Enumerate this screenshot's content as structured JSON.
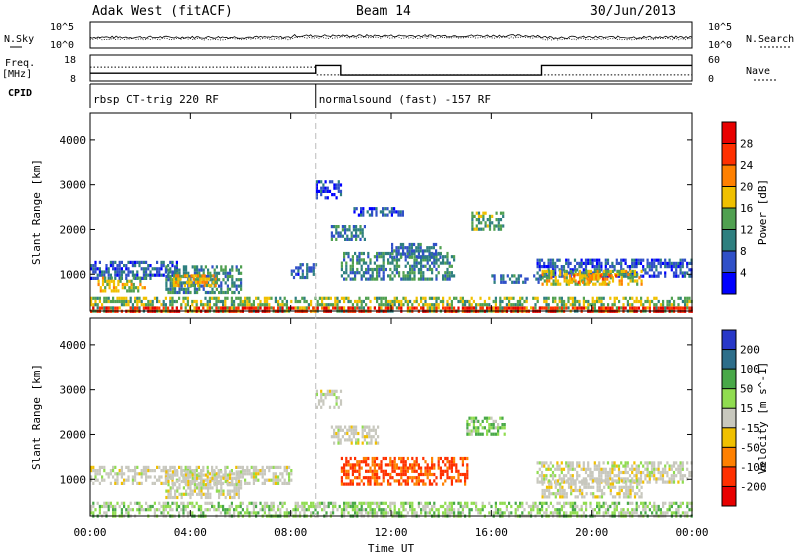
{
  "header": {
    "radar": "Adak West (fitACF)",
    "beam": "Beam 14",
    "date": "30/Jun/2013"
  },
  "noise_panel": {
    "left_label": "N.Sky",
    "right_label": "N.Search",
    "left_ticks": [
      "10^5",
      "10^0"
    ],
    "right_ticks": [
      "10^5",
      "10^0"
    ]
  },
  "freq_panel": {
    "left_label_1": "Freq.",
    "left_label_2": "[MHz]",
    "right_label": "Nave",
    "left_ticks": [
      "18",
      "8"
    ],
    "right_ticks": [
      "60",
      "0"
    ],
    "freq_steps": [
      {
        "t0": 0.0,
        "t1": 9.0,
        "mhz": 11.0
      },
      {
        "t0": 9.0,
        "t1": 10.0,
        "mhz": 14.0
      },
      {
        "t0": 10.0,
        "t1": 18.0,
        "mhz": 10.3
      },
      {
        "t0": 18.0,
        "t1": 24.0,
        "mhz": 14.0
      }
    ],
    "nave_steps": [
      {
        "t0": 0.0,
        "t1": 9.0,
        "nave": 32
      },
      {
        "t0": 9.0,
        "t1": 10.0,
        "nave": 14
      },
      {
        "t0": 10.0,
        "t1": 18.0,
        "nave": 14
      },
      {
        "t0": 18.0,
        "t1": 24.0,
        "nave": 14
      }
    ]
  },
  "cpid": {
    "label": "CPID",
    "segments": [
      {
        "start_hour": 0.0,
        "text": "rbsp CT-trig 220 RF"
      },
      {
        "start_hour": 9.0,
        "text": "normalsound (fast) -157 RF"
      }
    ]
  },
  "chart_data": [
    {
      "type": "heatmap",
      "name": "power",
      "ylabel": "Slant Range [km]",
      "ylim": [
        180,
        4600
      ],
      "y_ticks": [
        "1000",
        "2000",
        "3000",
        "4000"
      ],
      "y_tick_values": [
        1000,
        2000,
        3000,
        4000
      ],
      "xlim": [
        0,
        24
      ],
      "colorbar": {
        "label": "Power [dB]",
        "ticks": [
          "4",
          "8",
          "12",
          "16",
          "20",
          "24",
          "28"
        ],
        "tick_values": [
          4,
          8,
          12,
          16,
          20,
          24,
          28
        ],
        "range": [
          0,
          30
        ],
        "colors": [
          "#0000ff",
          "#3050c8",
          "#2e7f7f",
          "#50a050",
          "#f0c000",
          "#ff8000",
          "#ff3000",
          "#e80000"
        ]
      },
      "regions": [
        {
          "t0": 0.0,
          "t1": 3.5,
          "r0": 900,
          "r1": 1300,
          "level": 6
        },
        {
          "t0": 0.3,
          "t1": 2.2,
          "r0": 650,
          "r1": 950,
          "level": 16
        },
        {
          "t0": 3.0,
          "t1": 6.0,
          "r0": 600,
          "r1": 1200,
          "level": 10
        },
        {
          "t0": 3.3,
          "t1": 5.0,
          "r0": 750,
          "r1": 1000,
          "level": 18
        },
        {
          "t0": 8.0,
          "t1": 9.0,
          "r0": 900,
          "r1": 1250,
          "level": 7
        },
        {
          "t0": 9.0,
          "t1": 10.0,
          "r0": 2700,
          "r1": 3100,
          "level": 5
        },
        {
          "t0": 9.6,
          "t1": 11.0,
          "r0": 1800,
          "r1": 2100,
          "level": 8
        },
        {
          "t0": 10.5,
          "t1": 12.5,
          "r0": 2300,
          "r1": 2500,
          "level": 6
        },
        {
          "t0": 10.0,
          "t1": 14.5,
          "r0": 900,
          "r1": 1500,
          "level": 10
        },
        {
          "t0": 12.0,
          "t1": 14.0,
          "r0": 1400,
          "r1": 1700,
          "level": 8
        },
        {
          "t0": 15.2,
          "t1": 16.5,
          "r0": 2000,
          "r1": 2400,
          "level": 12
        },
        {
          "t0": 16.0,
          "t1": 18.0,
          "r0": 800,
          "r1": 1000,
          "level": 8
        },
        {
          "t0": 17.8,
          "t1": 24.0,
          "r0": 950,
          "r1": 1350,
          "level": 6
        },
        {
          "t0": 18.0,
          "t1": 22.0,
          "r0": 750,
          "r1": 1100,
          "level": 16
        },
        {
          "t0": 19.0,
          "t1": 21.0,
          "r0": 850,
          "r1": 1000,
          "level": 20
        },
        {
          "t0": 0.0,
          "t1": 24.0,
          "r0": 180,
          "r1": 500,
          "level": 14
        },
        {
          "t0": 0.0,
          "t1": 24.0,
          "r0": 180,
          "r1": 280,
          "level": 26
        }
      ]
    },
    {
      "type": "heatmap",
      "name": "velocity",
      "ylabel": "Slant Range [km]",
      "ylim": [
        180,
        4600
      ],
      "y_ticks": [
        "1000",
        "2000",
        "3000",
        "4000"
      ],
      "y_tick_values": [
        1000,
        2000,
        3000,
        4000
      ],
      "xlim": [
        0,
        24
      ],
      "colorbar": {
        "label": "Velocity [m s^-1]",
        "ticks": [
          "200",
          "100",
          "50",
          "15",
          "-15",
          "-50",
          "-100",
          "-200"
        ],
        "colors": [
          "#2838c8",
          "#2d6e8a",
          "#48a848",
          "#90dc50",
          "#c8c8be",
          "#f0c000",
          "#ff8000",
          "#ff3000",
          "#e80000"
        ]
      },
      "regions": [
        {
          "t0": 0.0,
          "t1": 8.0,
          "r0": 900,
          "r1": 1300,
          "vel": 0
        },
        {
          "t0": 3.0,
          "t1": 6.0,
          "r0": 600,
          "r1": 1200,
          "vel": 0
        },
        {
          "t0": 9.0,
          "t1": 10.0,
          "r0": 2600,
          "r1": 3000,
          "vel": 0
        },
        {
          "t0": 9.6,
          "t1": 11.5,
          "r0": 1800,
          "r1": 2200,
          "vel": 0
        },
        {
          "t0": 10.0,
          "t1": 15.0,
          "r0": 900,
          "r1": 1500,
          "vel": -80
        },
        {
          "t0": 15.0,
          "t1": 16.5,
          "r0": 2000,
          "r1": 2400,
          "vel": 30
        },
        {
          "t0": 17.8,
          "t1": 24.0,
          "r0": 900,
          "r1": 1400,
          "vel": 0
        },
        {
          "t0": 18.0,
          "t1": 22.0,
          "r0": 600,
          "r1": 1000,
          "vel": 0
        },
        {
          "t0": 0.0,
          "t1": 24.0,
          "r0": 180,
          "r1": 500,
          "vel": 20
        }
      ]
    }
  ],
  "x_axis": {
    "label": "Time UT",
    "ticks": [
      "00:00",
      "04:00",
      "08:00",
      "12:00",
      "16:00",
      "20:00",
      "00:00"
    ],
    "tick_hours": [
      0,
      4,
      8,
      12,
      16,
      20,
      24
    ]
  }
}
